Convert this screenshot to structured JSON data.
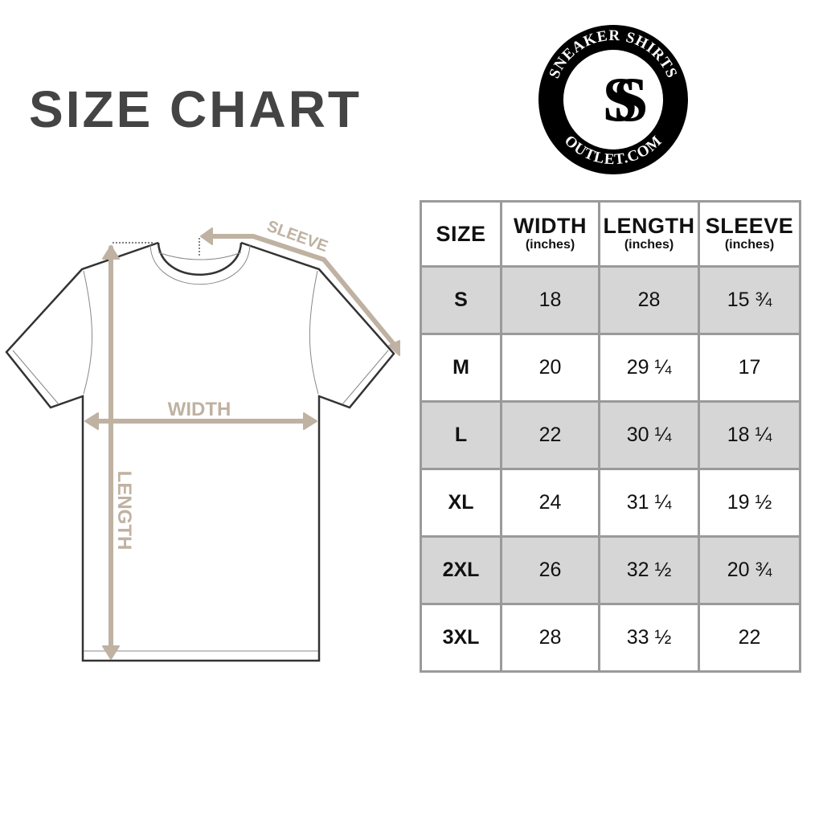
{
  "title": "SIZE CHART",
  "logo": {
    "top_text": "SNEAKER SHIRTS",
    "bottom_text": "OUTLET.COM",
    "monogram": "SS"
  },
  "diagram": {
    "labels": {
      "sleeve": "SLEEVE",
      "width": "WIDTH",
      "length": "LENGTH"
    },
    "accent_color": "#bfb2a2",
    "outline_color": "#333333"
  },
  "table": {
    "headers": [
      {
        "label": "SIZE",
        "unit": ""
      },
      {
        "label": "WIDTH",
        "unit": "(inches)"
      },
      {
        "label": "LENGTH",
        "unit": "(inches)"
      },
      {
        "label": "SLEEVE",
        "unit": "(inches)"
      }
    ],
    "rows": [
      [
        "S",
        "18",
        "28",
        "15 ¾"
      ],
      [
        "M",
        "20",
        "29 ¼",
        "17"
      ],
      [
        "L",
        "22",
        "30 ¼",
        "18 ¼"
      ],
      [
        "XL",
        "24",
        "31 ¼",
        "19 ½"
      ],
      [
        "2XL",
        "26",
        "32 ½",
        "20 ¾"
      ],
      [
        "3XL",
        "28",
        "33 ½",
        "22"
      ]
    ],
    "shade_color": "#d6d6d6",
    "border_color": "#9a9a9a"
  }
}
